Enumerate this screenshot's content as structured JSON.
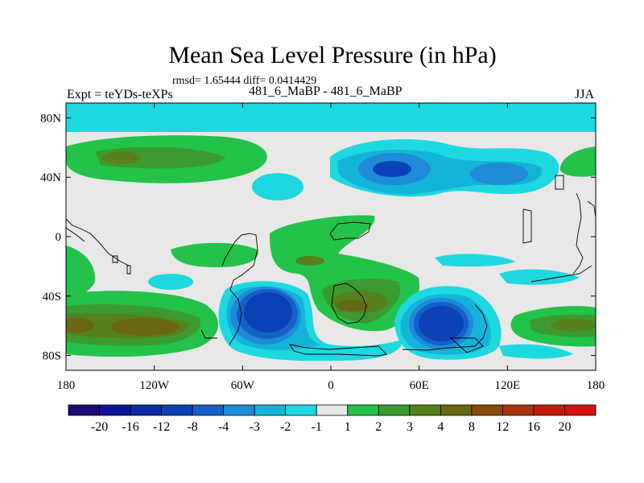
{
  "header": {
    "title": "Mean Sea Level Pressure (in hPa)",
    "stats": "rmsd= 1.65444 diff= 0.0414429",
    "expt": "Expt = teYDs-teXPs",
    "center_label": "481_6_MaBP - 481_6_MaBP",
    "season": "JJA"
  },
  "chart_data": {
    "type": "heatmap",
    "title": "Mean Sea Level Pressure (in hPa)",
    "xlabel": "",
    "ylabel": "",
    "x_range": [
      -180,
      180
    ],
    "y_range": [
      -90,
      90
    ],
    "x_ticks": [
      {
        "value": -180,
        "label": "180"
      },
      {
        "value": -120,
        "label": "120W"
      },
      {
        "value": -60,
        "label": "60W"
      },
      {
        "value": 0,
        "label": "0"
      },
      {
        "value": 60,
        "label": "60E"
      },
      {
        "value": 120,
        "label": "120E"
      },
      {
        "value": 180,
        "label": "180"
      }
    ],
    "y_ticks": [
      {
        "value": 80,
        "label": "80N"
      },
      {
        "value": 40,
        "label": "40N"
      },
      {
        "value": 0,
        "label": "0"
      },
      {
        "value": -40,
        "label": "40S"
      },
      {
        "value": -80,
        "label": "80S"
      }
    ],
    "colorbar": {
      "labels": [
        "-20",
        "-16",
        "-12",
        "-8",
        "-4",
        "-3",
        "-2",
        "-1",
        "1",
        "2",
        "3",
        "4",
        "8",
        "12",
        "16",
        "20"
      ],
      "colors": [
        "#1a0a6e",
        "#0c1396",
        "#0a2aa6",
        "#0a41b4",
        "#1560c8",
        "#1f8ad8",
        "#14b4d8",
        "#1ed8e0",
        "#e8e8e8",
        "#23c24a",
        "#3a9a30",
        "#57801e",
        "#6a6614",
        "#8a4a10",
        "#a83410",
        "#c01c0c",
        "#d80f0f"
      ]
    },
    "features": [
      {
        "name": "Arctic low (-1 to -2)",
        "lon": [
          -180,
          180
        ],
        "lat": [
          79,
          90
        ],
        "level": -1.5
      },
      {
        "name": "N Pacific high",
        "lon": -140,
        "lat": 55,
        "level": 3
      },
      {
        "name": "Eurasia low",
        "lon": 40,
        "lat": 47,
        "level": -4
      },
      {
        "name": "Central Asia low",
        "lon": 100,
        "lat": 43,
        "level": -3
      },
      {
        "name": "SE Pacific high",
        "lon": -125,
        "lat": -60,
        "level": 4
      },
      {
        "name": "S Atlantic low",
        "lon": -45,
        "lat": -55,
        "level": -8
      },
      {
        "name": "S Africa high",
        "lon": 15,
        "lat": -50,
        "level": 4
      },
      {
        "name": "S Indian Ocean low",
        "lon": 75,
        "lat": -60,
        "level": -8
      },
      {
        "name": "SW Pacific high",
        "lon": 160,
        "lat": -60,
        "level": 3
      },
      {
        "name": "Tropical Atlantic high",
        "lon": -20,
        "lat": -15,
        "level": 3
      }
    ]
  }
}
